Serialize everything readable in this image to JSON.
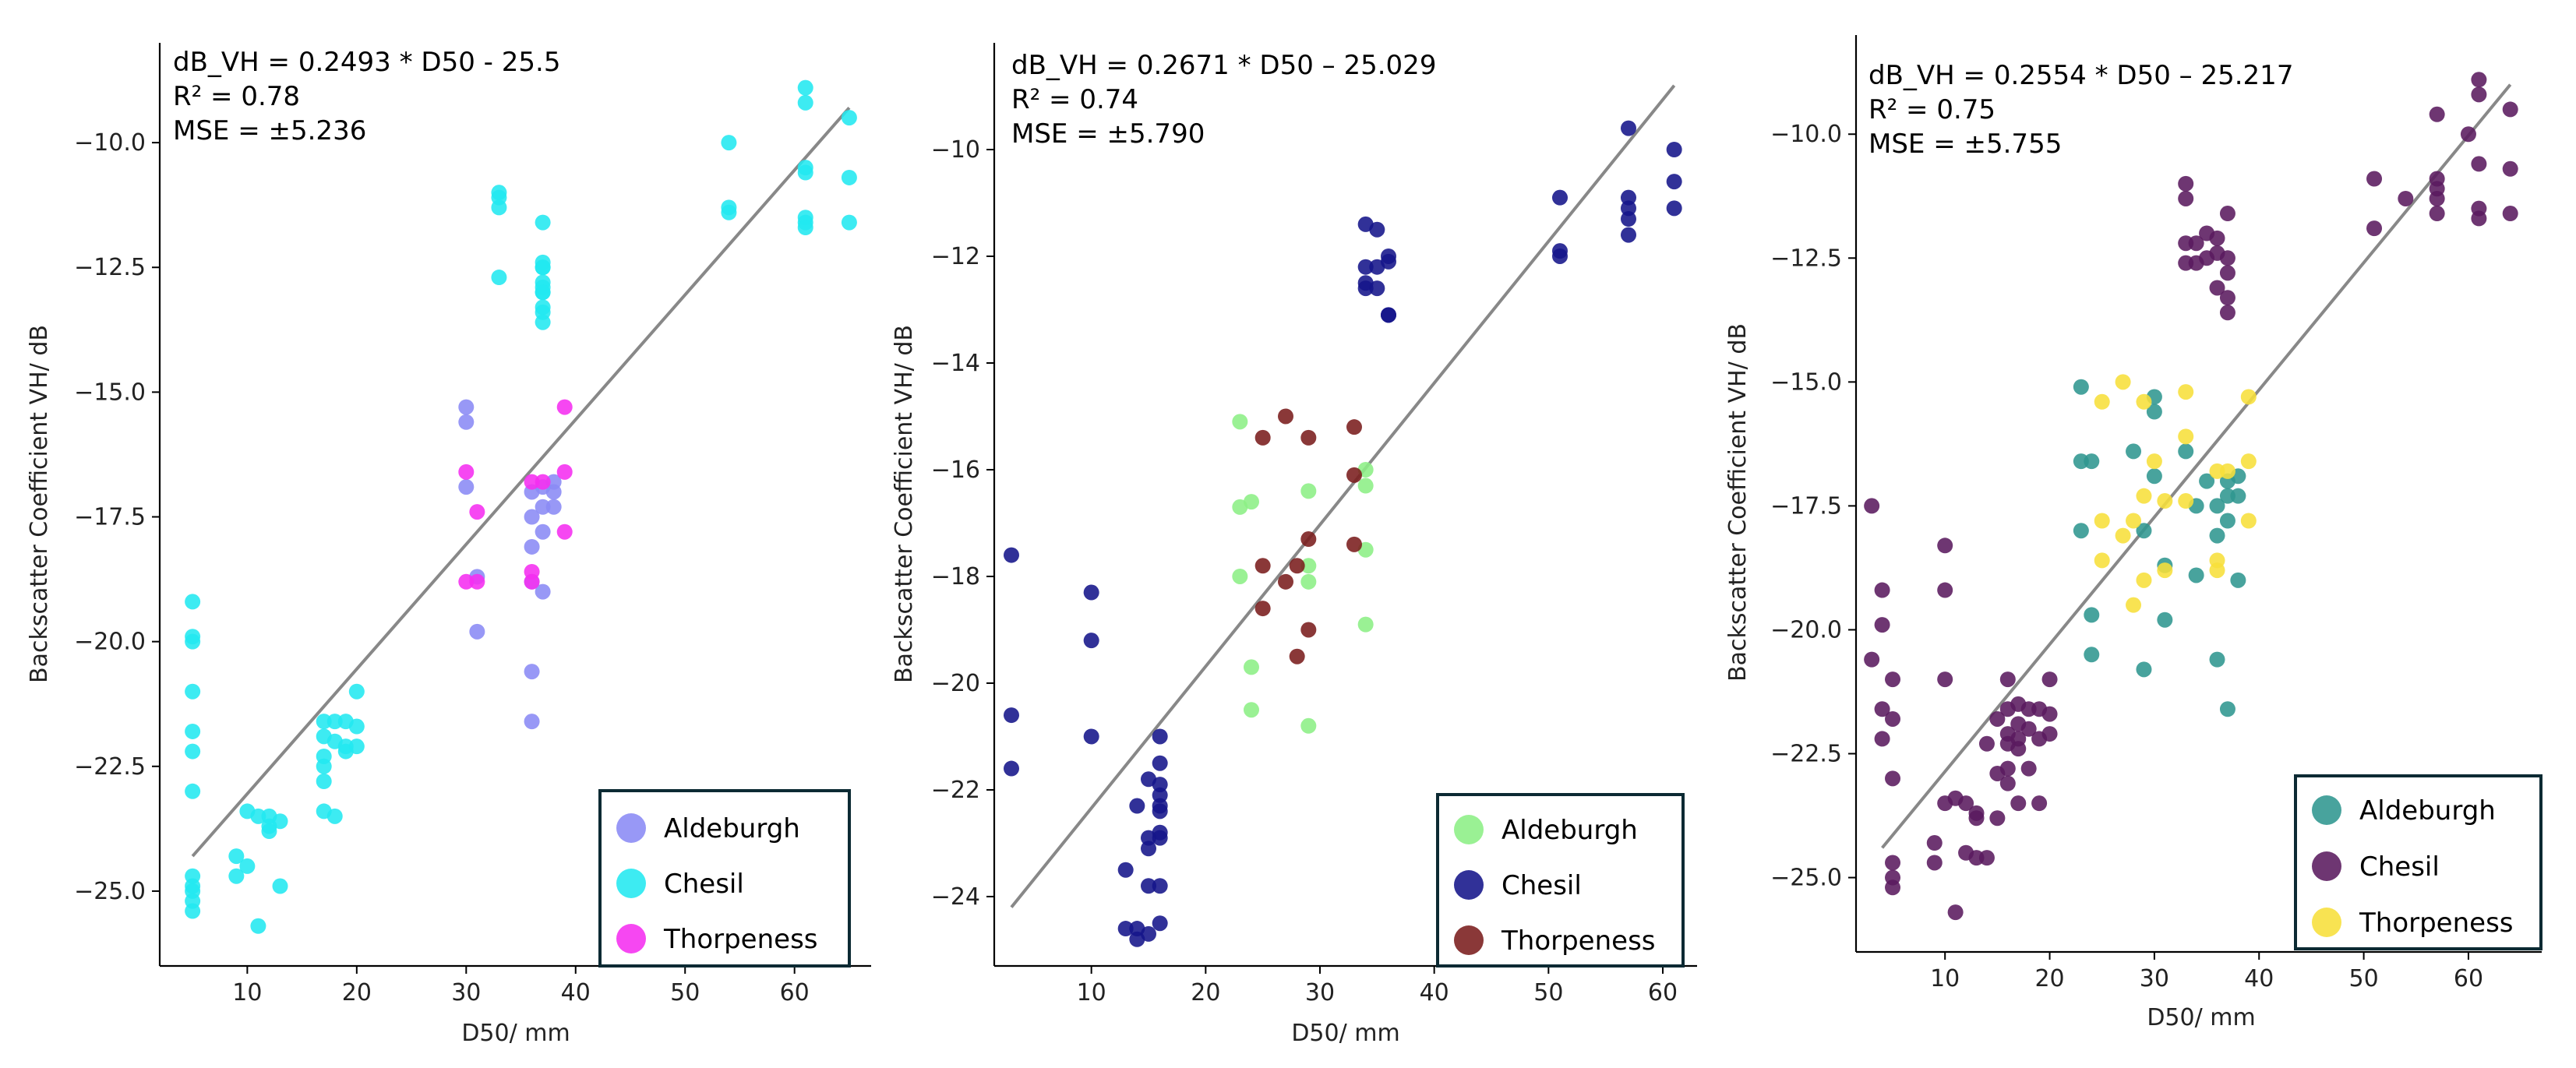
{
  "chart_data": [
    {
      "type": "scatter",
      "panel": "left",
      "xlabel": "D50/ mm",
      "ylabel": "Backscatter Coefficient VH/ dB",
      "xlim": [
        2,
        67
      ],
      "ylim": [
        -26.5,
        -8.0
      ],
      "xticks": [
        10,
        20,
        30,
        40,
        50,
        60
      ],
      "yticks": [
        -25.0,
        -22.5,
        -20.0,
        -17.5,
        -15.0,
        -12.5,
        -10.0
      ],
      "ytick_labels": [
        "−25.0",
        "−22.5",
        "−20.0",
        "−17.5",
        "−15.0",
        "−12.5",
        "−10.0"
      ],
      "xtick_labels": [
        "10",
        "20",
        "30",
        "40",
        "50",
        "60"
      ],
      "annotations": [
        "dB_VH = 0.2493 * D50 - 25.5",
        "R² = 0.78",
        "MSE = ±5.236"
      ],
      "fit_line": {
        "x": [
          5,
          65
        ],
        "y": [
          -24.3,
          -9.3
        ]
      },
      "legend_position": "bottom-right",
      "series": [
        {
          "name": "Aldeburgh",
          "color": "#8a8af5",
          "x": [
            30,
            30,
            30,
            31,
            31,
            36,
            36,
            36,
            36,
            36,
            36,
            37,
            37,
            37,
            37,
            38,
            38,
            38
          ],
          "y": [
            -15.3,
            -15.6,
            -16.9,
            -18.7,
            -19.8,
            -17.0,
            -17.5,
            -18.1,
            -18.8,
            -20.6,
            -21.6,
            -16.9,
            -17.3,
            -17.8,
            -19.0,
            -16.8,
            -17.0,
            -17.3
          ]
        },
        {
          "name": "Chesil",
          "color": "#22e8f0",
          "x": [
            5,
            5,
            5,
            5,
            5,
            5,
            5,
            5,
            5,
            5,
            5,
            5,
            9,
            9,
            10,
            10,
            11,
            11,
            12,
            12,
            12,
            13,
            13,
            17,
            17,
            17,
            17,
            17,
            17,
            18,
            18,
            18,
            19,
            19,
            19,
            20,
            20,
            20,
            33,
            33,
            33,
            33,
            37,
            37,
            37,
            37,
            37,
            37,
            37,
            37,
            37,
            37,
            37,
            54,
            54,
            54,
            61,
            61,
            61,
            61,
            61,
            61,
            61,
            65,
            65,
            65
          ],
          "y": [
            -19.2,
            -19.9,
            -20.0,
            -21.0,
            -21.8,
            -22.2,
            -23.0,
            -24.7,
            -24.9,
            -25.0,
            -25.2,
            -25.4,
            -24.3,
            -24.7,
            -23.4,
            -24.5,
            -25.7,
            -23.5,
            -23.5,
            -23.7,
            -23.8,
            -23.6,
            -24.9,
            -21.6,
            -21.9,
            -22.3,
            -22.5,
            -22.8,
            -23.4,
            -21.6,
            -22.0,
            -23.5,
            -21.6,
            -22.2,
            -22.1,
            -21.0,
            -21.7,
            -22.1,
            -11.0,
            -11.3,
            -12.7,
            -11.1,
            -11.6,
            -12.4,
            -12.5,
            -12.8,
            -13.0,
            -13.3,
            -13.4,
            -13.6,
            -12.9,
            -12.5,
            -13.0,
            -10.0,
            -11.3,
            -11.4,
            -8.9,
            -9.2,
            -10.5,
            -10.6,
            -11.5,
            -11.6,
            -11.7,
            -9.5,
            -10.7,
            -11.6
          ]
        },
        {
          "name": "Thorpeness",
          "color": "#f52ef0",
          "x": [
            30,
            31,
            30,
            31,
            36,
            36,
            36,
            37,
            39,
            39,
            39
          ],
          "y": [
            -16.6,
            -17.4,
            -18.8,
            -18.8,
            -16.8,
            -18.6,
            -18.8,
            -16.8,
            -15.3,
            -16.6,
            -17.8
          ]
        }
      ]
    },
    {
      "type": "scatter",
      "panel": "middle",
      "xlabel": "D50/ mm",
      "ylabel": "Backscatter Coefficient VH/ dB",
      "xlim": [
        1.5,
        63
      ],
      "ylim": [
        -25.3,
        -8.0
      ],
      "xticks": [
        10,
        20,
        30,
        40,
        50,
        60
      ],
      "yticks": [
        -24,
        -22,
        -20,
        -18,
        -16,
        -14,
        -12,
        -10
      ],
      "ytick_labels": [
        "−24",
        "−22",
        "−20",
        "−18",
        "−16",
        "−14",
        "−12",
        "−10"
      ],
      "xtick_labels": [
        "10",
        "20",
        "30",
        "40",
        "50",
        "60"
      ],
      "annotations": [
        "dB_VH = 0.2671 * D50 – 25.029",
        "R² = 0.74",
        "MSE = ±5.790"
      ],
      "fit_line": {
        "x": [
          3,
          61
        ],
        "y": [
          -24.2,
          -8.8
        ]
      },
      "legend_position": "bottom-right",
      "series": [
        {
          "name": "Aldeburgh",
          "color": "#8cef85",
          "x": [
            23,
            23,
            24,
            23,
            24,
            24,
            29,
            29,
            29,
            29,
            34,
            34,
            34,
            34
          ],
          "y": [
            -15.1,
            -16.7,
            -16.6,
            -18.0,
            -19.7,
            -20.5,
            -16.4,
            -17.8,
            -18.1,
            -20.8,
            -16.0,
            -16.3,
            -17.5,
            -18.9
          ]
        },
        {
          "name": "Chesil",
          "color": "#14148a",
          "x": [
            3,
            3,
            3,
            10,
            10,
            10,
            13,
            13,
            14,
            14,
            14,
            15,
            15,
            15,
            15,
            15,
            16,
            16,
            16,
            16,
            16,
            16,
            16,
            16,
            16,
            16,
            34,
            34,
            34,
            34,
            35,
            35,
            35,
            36,
            36,
            36,
            36,
            51,
            51,
            51,
            57,
            57,
            57,
            57,
            57,
            61,
            61,
            61
          ],
          "y": [
            -17.6,
            -20.6,
            -21.6,
            -18.3,
            -19.2,
            -21.0,
            -23.5,
            -24.6,
            -24.8,
            -22.3,
            -24.6,
            -21.8,
            -22.9,
            -23.1,
            -23.8,
            -24.7,
            -21.0,
            -21.5,
            -21.9,
            -22.1,
            -22.3,
            -22.4,
            -22.8,
            -22.9,
            -23.8,
            -24.5,
            -11.4,
            -12.2,
            -12.5,
            -12.6,
            -11.5,
            -12.2,
            -12.6,
            -12.0,
            -12.1,
            -13.1,
            -13.1,
            -10.9,
            -11.9,
            -12.0,
            -9.6,
            -10.9,
            -11.1,
            -11.3,
            -11.6,
            -10.0,
            -10.6,
            -11.1
          ]
        },
        {
          "name": "Thorpeness",
          "color": "#7a1c1c",
          "x": [
            25,
            25,
            25,
            27,
            27,
            28,
            28,
            29,
            29,
            29,
            33,
            33,
            33
          ],
          "y": [
            -15.4,
            -17.8,
            -18.6,
            -15.0,
            -18.1,
            -17.8,
            -19.5,
            -15.4,
            -17.3,
            -19.0,
            -15.2,
            -16.1,
            -17.4
          ]
        }
      ]
    },
    {
      "type": "scatter",
      "panel": "right",
      "xlabel": "D50/ mm",
      "ylabel": "Backscatter Coefficient VH/ dB",
      "xlim": [
        1.5,
        67
      ],
      "ylim": [
        -26.5,
        -8.0
      ],
      "xticks": [
        10,
        20,
        30,
        40,
        50,
        60
      ],
      "yticks": [
        -25.0,
        -22.5,
        -20.0,
        -17.5,
        -15.0,
        -12.5,
        -10.0
      ],
      "ytick_labels": [
        "−25.0",
        "−22.5",
        "−20.0",
        "−17.5",
        "−15.0",
        "−12.5",
        "−10.0"
      ],
      "xtick_labels": [
        "10",
        "20",
        "30",
        "40",
        "50",
        "60"
      ],
      "annotations": [
        "dB_VH = 0.2554 * D50 – 25.217",
        "R² = 0.75",
        "MSE = ±5.755"
      ],
      "fit_line": {
        "x": [
          4,
          64
        ],
        "y": [
          -24.4,
          -9.0
        ]
      },
      "legend_position": "bottom-right",
      "series": [
        {
          "name": "Aldeburgh",
          "color": "#2f9690",
          "x": [
            23,
            23,
            23,
            24,
            24,
            24,
            28,
            29,
            29,
            30,
            30,
            30,
            31,
            31,
            33,
            34,
            34,
            35,
            36,
            36,
            36,
            37,
            37,
            37,
            37,
            38,
            38,
            38
          ],
          "y": [
            -15.1,
            -16.6,
            -18.0,
            -19.7,
            -20.5,
            -16.6,
            -16.4,
            -18.0,
            -20.8,
            -15.3,
            -15.6,
            -16.9,
            -18.7,
            -19.8,
            -16.4,
            -17.5,
            -18.9,
            -17.0,
            -17.5,
            -18.1,
            -20.6,
            -21.6,
            -17.0,
            -17.3,
            -17.8,
            -19.0,
            -16.9,
            -17.3
          ]
        },
        {
          "name": "Chesil",
          "color": "#5a1a5e",
          "x": [
            3,
            3,
            4,
            4,
            4,
            4,
            5,
            5,
            5,
            5,
            5,
            5,
            9,
            9,
            10,
            10,
            10,
            10,
            11,
            11,
            12,
            12,
            13,
            13,
            13,
            14,
            14,
            15,
            15,
            15,
            16,
            16,
            16,
            16,
            16,
            16,
            17,
            17,
            17,
            17,
            17,
            18,
            18,
            18,
            19,
            19,
            19,
            20,
            20,
            20,
            33,
            33,
            33,
            33,
            34,
            34,
            35,
            35,
            36,
            36,
            36,
            37,
            37,
            37,
            37,
            37,
            51,
            51,
            54,
            57,
            57,
            57,
            57,
            57,
            60,
            61,
            61,
            61,
            61,
            61,
            64,
            64,
            64
          ],
          "y": [
            -17.5,
            -20.6,
            -21.6,
            -19.2,
            -19.9,
            -22.2,
            -23.0,
            -24.7,
            -25.0,
            -25.2,
            -21.0,
            -21.8,
            -24.3,
            -24.7,
            -18.3,
            -19.2,
            -21.0,
            -23.5,
            -23.4,
            -25.7,
            -23.5,
            -24.5,
            -23.7,
            -24.6,
            -23.8,
            -22.3,
            -24.6,
            -21.8,
            -22.9,
            -23.8,
            -21.0,
            -21.6,
            -22.1,
            -22.3,
            -22.8,
            -23.1,
            -21.5,
            -21.9,
            -22.2,
            -22.4,
            -23.5,
            -21.6,
            -22.0,
            -22.8,
            -21.6,
            -22.2,
            -23.5,
            -21.0,
            -21.7,
            -22.1,
            -11.0,
            -11.3,
            -12.2,
            -12.6,
            -12.2,
            -12.6,
            -12.0,
            -12.5,
            -12.1,
            -12.4,
            -13.1,
            -11.6,
            -12.5,
            -12.8,
            -13.3,
            -13.6,
            -10.9,
            -11.9,
            -11.3,
            -9.6,
            -10.9,
            -11.1,
            -11.3,
            -11.6,
            -10.0,
            -8.9,
            -9.2,
            -10.6,
            -11.5,
            -11.7,
            -9.5,
            -10.7,
            -11.6
          ]
        },
        {
          "name": "Thorpeness",
          "color": "#f7df3a",
          "x": [
            25,
            25,
            25,
            27,
            27,
            28,
            28,
            29,
            29,
            29,
            30,
            31,
            31,
            33,
            33,
            33,
            36,
            36,
            36,
            37,
            39,
            39,
            39
          ],
          "y": [
            -15.4,
            -17.8,
            -18.6,
            -15.0,
            -18.1,
            -17.8,
            -19.5,
            -15.4,
            -17.3,
            -19.0,
            -16.6,
            -17.4,
            -18.8,
            -15.2,
            -16.1,
            -17.4,
            -16.8,
            -18.6,
            -18.8,
            -16.8,
            -15.3,
            -16.6,
            -17.8
          ]
        }
      ]
    }
  ]
}
